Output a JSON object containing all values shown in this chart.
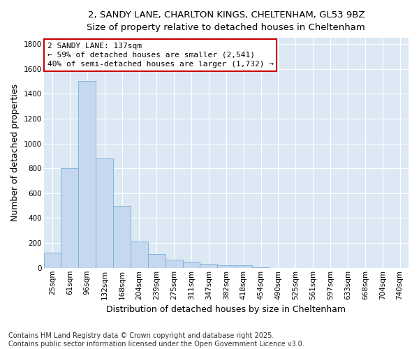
{
  "title_line1": "2, SANDY LANE, CHARLTON KINGS, CHELTENHAM, GL53 9BZ",
  "title_line2": "Size of property relative to detached houses in Cheltenham",
  "xlabel": "Distribution of detached houses by size in Cheltenham",
  "ylabel": "Number of detached properties",
  "bar_color": "#c5d8ef",
  "bar_edge_color": "#7aadd4",
  "plot_bg_color": "#dce9f5",
  "fig_bg_color": "#ffffff",
  "grid_color": "#ffffff",
  "annotation_text_line1": "2 SANDY LANE: 137sqm",
  "annotation_text_line2": "← 59% of detached houses are smaller (2,541)",
  "annotation_text_line3": "40% of semi-detached houses are larger (1,732) →",
  "annotation_box_facecolor": "#ffffff",
  "annotation_border_color": "#cc0000",
  "categories": [
    "25sqm",
    "61sqm",
    "96sqm",
    "132sqm",
    "168sqm",
    "204sqm",
    "239sqm",
    "275sqm",
    "311sqm",
    "347sqm",
    "382sqm",
    "418sqm",
    "454sqm",
    "490sqm",
    "525sqm",
    "561sqm",
    "597sqm",
    "633sqm",
    "668sqm",
    "704sqm",
    "740sqm"
  ],
  "values": [
    120,
    800,
    1500,
    880,
    500,
    210,
    110,
    65,
    50,
    30,
    20,
    20,
    5,
    0,
    0,
    0,
    0,
    0,
    0,
    0,
    0
  ],
  "ylim": [
    0,
    1850
  ],
  "yticks": [
    0,
    200,
    400,
    600,
    800,
    1000,
    1200,
    1400,
    1600,
    1800
  ],
  "footer_line1": "Contains HM Land Registry data © Crown copyright and database right 2025.",
  "footer_line2": "Contains public sector information licensed under the Open Government Licence v3.0.",
  "title_fontsize": 9.5,
  "subtitle_fontsize": 9,
  "axis_label_fontsize": 9,
  "tick_fontsize": 7.5,
  "annotation_fontsize": 8,
  "footer_fontsize": 7
}
